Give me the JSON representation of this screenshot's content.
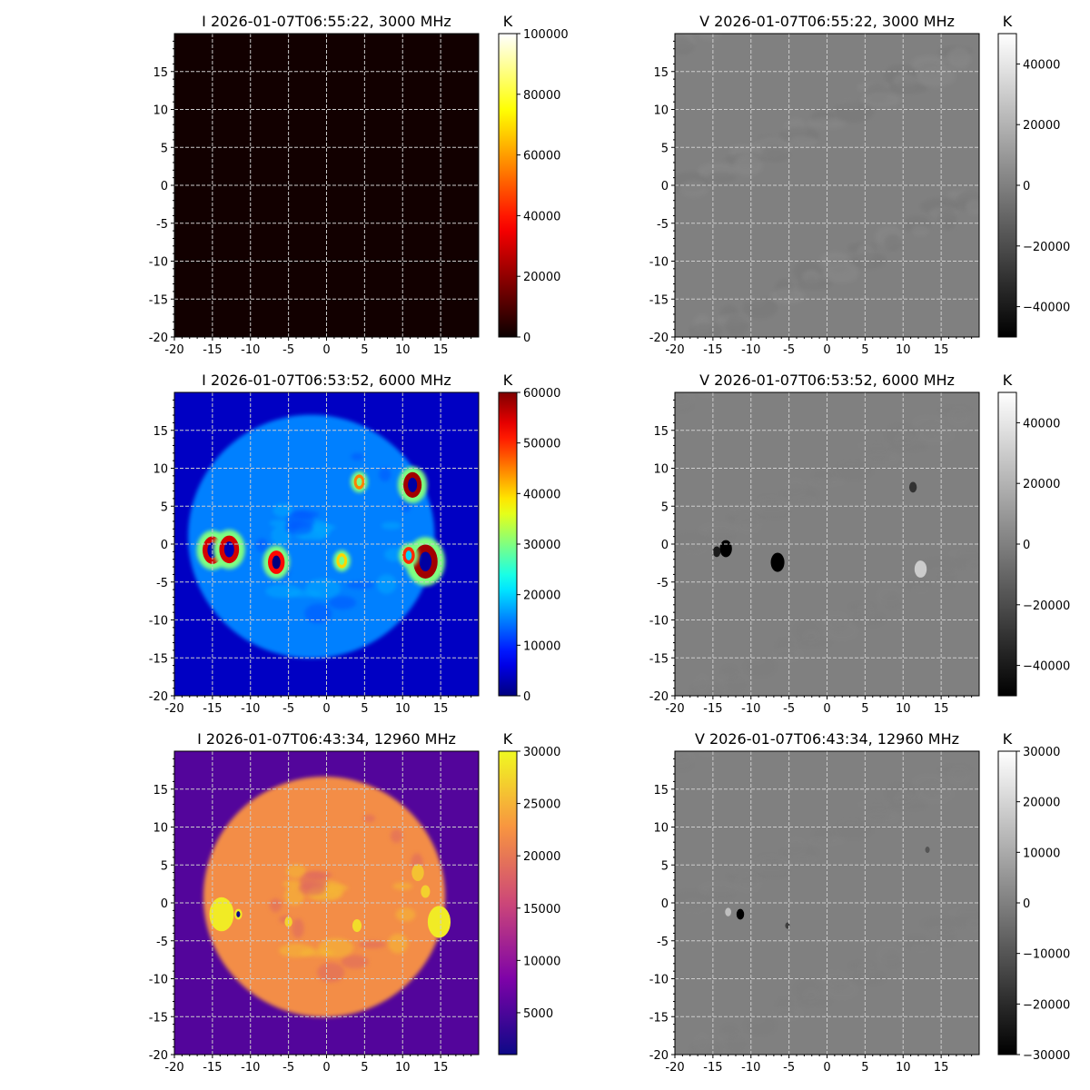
{
  "chart_data": [
    {
      "type": "heatmap",
      "title": "I 2026-01-07T06:55:22, 3000 MHz",
      "colorbar_label": "K",
      "cmap": "hot",
      "vmin": 0,
      "vmax": 100000,
      "cbar_ticks": [
        {
          "v": 0,
          "label": "0"
        },
        {
          "v": 20000,
          "label": "20000"
        },
        {
          "v": 40000,
          "label": "40000"
        },
        {
          "v": 60000,
          "label": "60000"
        },
        {
          "v": 80000,
          "label": "80000"
        },
        {
          "v": 100000,
          "label": "100000"
        }
      ],
      "background_value": 1000,
      "disk": null,
      "sources": []
    },
    {
      "type": "heatmap",
      "title": "V 2026-01-07T06:55:22, 3000 MHz",
      "colorbar_label": "K",
      "cmap": "gray",
      "vmin": -50000,
      "vmax": 50000,
      "cbar_ticks": [
        {
          "v": -40000,
          "label": "−40000"
        },
        {
          "v": -20000,
          "label": "−20000"
        },
        {
          "v": 0,
          "label": "0"
        },
        {
          "v": 20000,
          "label": "20000"
        },
        {
          "v": 40000,
          "label": "40000"
        }
      ],
      "background_value": 0,
      "disk": null,
      "sources": []
    },
    {
      "type": "heatmap",
      "title": "I 2026-01-07T06:53:52, 6000 MHz",
      "colorbar_label": "K",
      "cmap": "jet",
      "vmin": 0,
      "vmax": 60000,
      "cbar_ticks": [
        {
          "v": 0,
          "label": "0"
        },
        {
          "v": 10000,
          "label": "10000"
        },
        {
          "v": 20000,
          "label": "20000"
        },
        {
          "v": 30000,
          "label": "30000"
        },
        {
          "v": 40000,
          "label": "40000"
        },
        {
          "v": 50000,
          "label": "50000"
        },
        {
          "v": 60000,
          "label": "60000"
        }
      ],
      "background_value": 4000,
      "disk": {
        "cx": -2,
        "cy": 1,
        "rx": 16.2,
        "ry": 16,
        "value": 15000
      },
      "sources": [
        {
          "x": -15.0,
          "y": -0.8,
          "r": 1.3,
          "value": 55000,
          "core": 3000
        },
        {
          "x": -12.8,
          "y": -0.7,
          "r": 1.3,
          "value": 55000,
          "core": 3000
        },
        {
          "x": -6.6,
          "y": -2.4,
          "r": 1.1,
          "value": 52000,
          "core": 0
        },
        {
          "x": 11.3,
          "y": 7.8,
          "r": 1.2,
          "value": 58000,
          "core": 2000
        },
        {
          "x": 13.0,
          "y": -2.3,
          "r": 1.6,
          "value": 58000,
          "core": 2000
        },
        {
          "x": 10.8,
          "y": -1.5,
          "r": 0.8,
          "value": 50000,
          "core": 20000
        },
        {
          "x": 4.3,
          "y": 8.2,
          "r": 0.7,
          "value": 45000,
          "core": 30000
        },
        {
          "x": 2.0,
          "y": -2.2,
          "r": 0.7,
          "value": 40000,
          "core": 30000
        }
      ]
    },
    {
      "type": "heatmap",
      "title": "V 2026-01-07T06:53:52, 6000 MHz",
      "colorbar_label": "K",
      "cmap": "gray",
      "vmin": -50000,
      "vmax": 50000,
      "cbar_ticks": [
        {
          "v": -40000,
          "label": "−40000"
        },
        {
          "v": -20000,
          "label": "−20000"
        },
        {
          "v": 0,
          "label": "0"
        },
        {
          "v": 20000,
          "label": "20000"
        },
        {
          "v": 40000,
          "label": "40000"
        }
      ],
      "background_value": 0,
      "disk": null,
      "sources": [
        {
          "x": -13.3,
          "y": -0.6,
          "r": 0.8,
          "value": -50000,
          "core": -50000
        },
        {
          "x": -14.5,
          "y": -1.0,
          "r": 0.5,
          "value": -40000,
          "core": -40000
        },
        {
          "x": -6.5,
          "y": -2.4,
          "r": 0.9,
          "value": -50000,
          "core": -50000
        },
        {
          "x": 11.3,
          "y": 7.5,
          "r": 0.5,
          "value": -30000,
          "core": -30000
        },
        {
          "x": 12.3,
          "y": -3.3,
          "r": 0.8,
          "value": 30000,
          "core": 30000
        }
      ]
    },
    {
      "type": "heatmap",
      "title": "I 2026-01-07T06:43:34, 12960 MHz",
      "colorbar_label": "K",
      "cmap": "plasma",
      "vmin": 1000,
      "vmax": 30000,
      "cbar_ticks": [
        {
          "v": 5000,
          "label": "5000"
        },
        {
          "v": 10000,
          "label": "10000"
        },
        {
          "v": 15000,
          "label": "15000"
        },
        {
          "v": 20000,
          "label": "20000"
        },
        {
          "v": 25000,
          "label": "25000"
        },
        {
          "v": 30000,
          "label": "30000"
        }
      ],
      "background_value": 5500,
      "disk": {
        "cx": -0.3,
        "cy": 0.8,
        "rx": 15.9,
        "ry": 15.8,
        "value": 22000
      },
      "sources": [
        {
          "x": -13.8,
          "y": -1.5,
          "r": 1.6,
          "value": 29000,
          "core": 29000
        },
        {
          "x": -11.6,
          "y": -1.5,
          "r": 0.5,
          "value": 29000,
          "core": 1000
        },
        {
          "x": 14.8,
          "y": -2.5,
          "r": 1.5,
          "value": 29000,
          "core": 29000
        },
        {
          "x": 4.0,
          "y": -3.0,
          "r": 0.6,
          "value": 28000,
          "core": 28000
        },
        {
          "x": -5.0,
          "y": -2.5,
          "r": 0.5,
          "value": 27000,
          "core": 27000
        },
        {
          "x": 12.0,
          "y": 4.0,
          "r": 0.8,
          "value": 26000,
          "core": 26000
        },
        {
          "x": 13.0,
          "y": 1.5,
          "r": 0.6,
          "value": 27000,
          "core": 27000
        }
      ]
    },
    {
      "type": "heatmap",
      "title": "V 2026-01-07T06:43:34, 12960 MHz",
      "colorbar_label": "K",
      "cmap": "gray",
      "vmin": -30000,
      "vmax": 30000,
      "cbar_ticks": [
        {
          "v": -30000,
          "label": "−30000"
        },
        {
          "v": -20000,
          "label": "−20000"
        },
        {
          "v": -10000,
          "label": "−10000"
        },
        {
          "v": 0,
          "label": "0"
        },
        {
          "v": 10000,
          "label": "10000"
        },
        {
          "v": 20000,
          "label": "20000"
        },
        {
          "v": 30000,
          "label": "30000"
        }
      ],
      "background_value": 0,
      "disk": null,
      "sources": [
        {
          "x": -11.4,
          "y": -1.5,
          "r": 0.5,
          "value": -30000,
          "core": -30000
        },
        {
          "x": -13.0,
          "y": -1.2,
          "r": 0.4,
          "value": 15000,
          "core": 15000
        },
        {
          "x": -5.2,
          "y": -3.0,
          "r": 0.3,
          "value": -15000,
          "core": -15000
        },
        {
          "x": 13.2,
          "y": 7.0,
          "r": 0.3,
          "value": -10000,
          "core": -10000
        }
      ]
    }
  ],
  "axes": {
    "xlim": [
      -20,
      20
    ],
    "ylim": [
      -20,
      20
    ],
    "xticks": [
      {
        "v": -20,
        "label": "-20"
      },
      {
        "v": -15,
        "label": "-15"
      },
      {
        "v": -10,
        "label": "-10"
      },
      {
        "v": -5,
        "label": "-5"
      },
      {
        "v": 0,
        "label": "0"
      },
      {
        "v": 5,
        "label": "5"
      },
      {
        "v": 10,
        "label": "10"
      },
      {
        "v": 15,
        "label": "15"
      }
    ],
    "yticks": [
      {
        "v": -20,
        "label": "-20"
      },
      {
        "v": -15,
        "label": "-15"
      },
      {
        "v": -10,
        "label": "-10"
      },
      {
        "v": -5,
        "label": "-5"
      },
      {
        "v": 0,
        "label": "0"
      },
      {
        "v": 5,
        "label": "5"
      },
      {
        "v": 10,
        "label": "10"
      },
      {
        "v": 15,
        "label": "15"
      }
    ],
    "grid": true
  }
}
